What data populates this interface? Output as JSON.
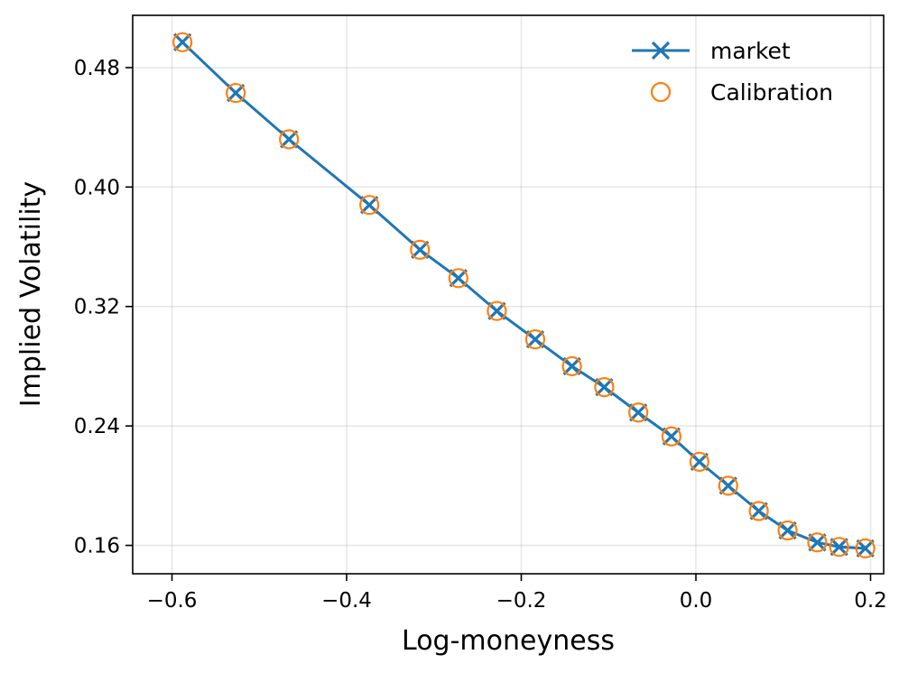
{
  "chart_data": {
    "type": "line",
    "xlabel": "Log-moneyness",
    "ylabel": "Implied Volatility",
    "xlim": [
      -0.645,
      0.215
    ],
    "ylim": [
      0.141,
      0.515
    ],
    "xticks": [
      -0.6,
      -0.4,
      -0.2,
      0.0,
      0.2
    ],
    "xtick_labels": [
      "−0.6",
      "−0.4",
      "−0.2",
      "0.0",
      "0.2"
    ],
    "yticks": [
      0.16,
      0.24,
      0.32,
      0.4,
      0.48
    ],
    "ytick_labels": [
      "0.16",
      "0.24",
      "0.32",
      "0.40",
      "0.48"
    ],
    "grid": true,
    "legend_position": "top-right",
    "x": [
      -0.588,
      -0.527,
      -0.466,
      -0.374,
      -0.316,
      -0.272,
      -0.228,
      -0.184,
      -0.142,
      -0.105,
      -0.066,
      -0.028,
      0.004,
      0.037,
      0.072,
      0.105,
      0.139,
      0.164,
      0.194
    ],
    "series": [
      {
        "name": "market",
        "style": "line-x",
        "color": "#1f77b4",
        "values": [
          0.497,
          0.463,
          0.432,
          0.388,
          0.358,
          0.339,
          0.317,
          0.298,
          0.28,
          0.266,
          0.249,
          0.233,
          0.216,
          0.2,
          0.183,
          0.17,
          0.162,
          0.159,
          0.158
        ]
      },
      {
        "name": "Calibration",
        "style": "open-circle",
        "color": "#ff7f0e",
        "values": [
          0.497,
          0.463,
          0.432,
          0.388,
          0.358,
          0.339,
          0.317,
          0.298,
          0.28,
          0.266,
          0.249,
          0.233,
          0.216,
          0.2,
          0.183,
          0.17,
          0.162,
          0.159,
          0.158
        ]
      }
    ]
  }
}
